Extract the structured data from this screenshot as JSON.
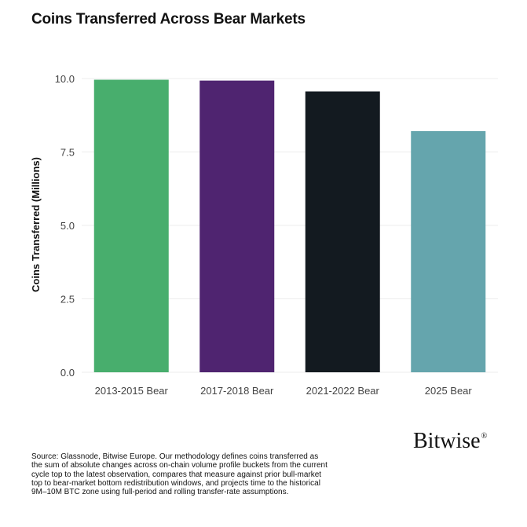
{
  "header": {
    "title": "Coins Transferred Across Bear Markets"
  },
  "chart_data": {
    "type": "bar",
    "title": "Coins Transferred Across Bear Markets",
    "categories": [
      "2013-2015 Bear",
      "2017-2018 Bear",
      "2021-2022 Bear",
      "2025 Bear"
    ],
    "values": [
      9.96,
      9.93,
      9.56,
      8.21
    ],
    "colors": [
      "#48ae6d",
      "#4f2470",
      "#131a20",
      "#65a5ad"
    ],
    "xlabel": "",
    "ylabel": "Coins Transferred (Millions)",
    "ylim": [
      0,
      10
    ],
    "yticks": [
      "0.0",
      "2.5",
      "5.0",
      "7.5",
      "10.0"
    ],
    "grid": true,
    "legend": "none"
  },
  "footer": {
    "brand": "Bitwise",
    "brand_mark": "®",
    "source": "Source: Glassnode, Bitwise Europe. Our methodology defines coins transferred as the sum of absolute changes across on-chain volume profile buckets from the current cycle top to the latest observation, compares that measure against prior bull-market top to bear-market bottom redistribution windows, and projects time to the historical 9M–10M BTC zone using full-period and rolling transfer-rate assumptions."
  }
}
